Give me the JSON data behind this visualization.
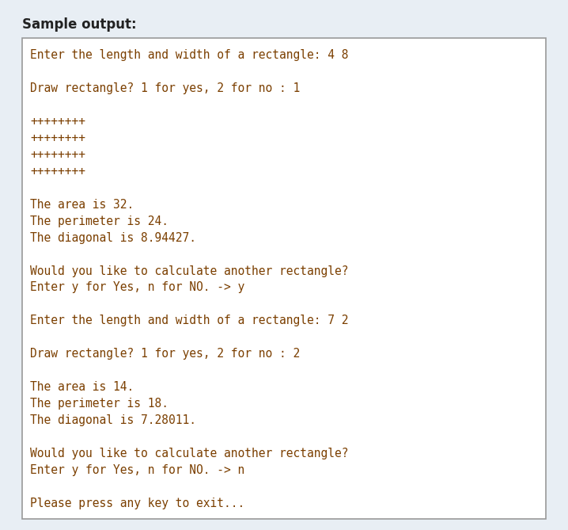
{
  "title": "Sample output:",
  "title_fontsize": 12,
  "title_color": "#222222",
  "bg_color": "#e8eef4",
  "box_bg_color": "#ffffff",
  "box_border_color": "#999999",
  "text_color": "#7b3f00",
  "text_fontsize": 10.5,
  "font_family": "monospace",
  "lines": [
    "Enter the length and width of a rectangle: 4 8",
    "",
    "Draw rectangle? 1 for yes, 2 for no : 1",
    "",
    "++++++++",
    "++++++++",
    "++++++++",
    "++++++++",
    "",
    "The area is 32.",
    "The perimeter is 24.",
    "The diagonal is 8.94427.",
    "",
    "Would you like to calculate another rectangle?",
    "Enter y for Yes, n for NO. -> y",
    "",
    "Enter the length and width of a rectangle: 7 2",
    "",
    "Draw rectangle? 1 for yes, 2 for no : 2",
    "",
    "The area is 14.",
    "The perimeter is 18.",
    "The diagonal is 7.28011.",
    "",
    "Would you like to calculate another rectangle?",
    "Enter y for Yes, n for NO. -> n",
    "",
    "Please press any key to exit..."
  ]
}
